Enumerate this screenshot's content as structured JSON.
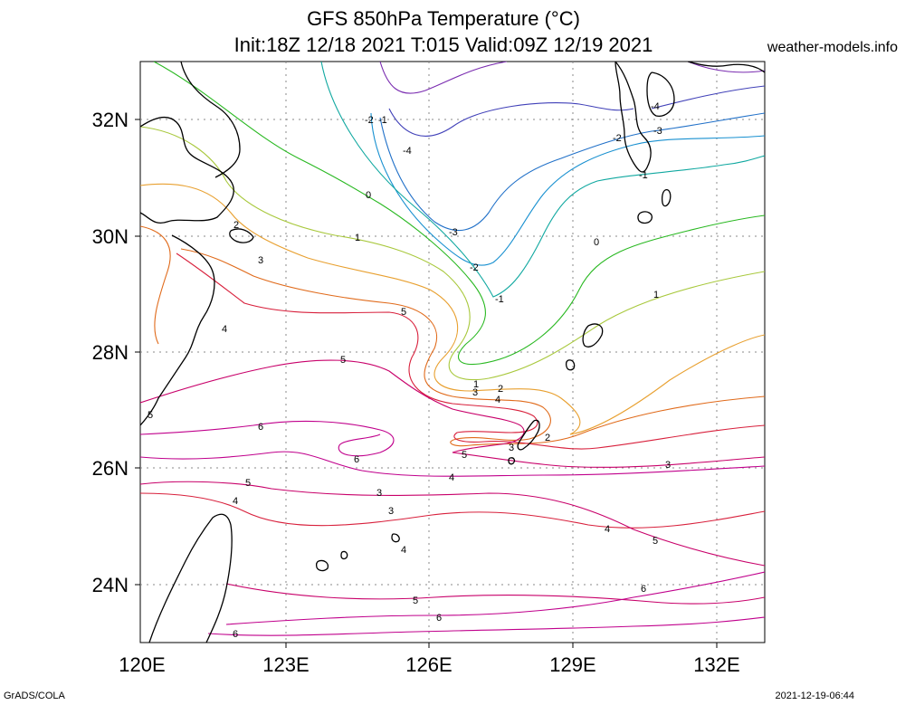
{
  "title": {
    "line1": "GFS 850hPa Temperature (°C)",
    "line2": "Init:18Z 12/18 2021 T:015 Valid:09Z 12/19 2021",
    "site": "weather-models.info"
  },
  "footer": {
    "left": "GrADS/COLA",
    "right": "2021-12-19-06:44"
  },
  "axes": {
    "lat_labels": [
      "32N",
      "30N",
      "28N",
      "26N",
      "24N"
    ],
    "lon_labels": [
      "120E",
      "123E",
      "126E",
      "129E",
      "132E"
    ]
  },
  "colors": {
    "c6": "#c0008c",
    "c5": "#c8006a",
    "c4": "#d8203c",
    "c3": "#e06a1a",
    "c2": "#e8a030",
    "c1": "#a8c83c",
    "c0": "#28b820",
    "cm1": "#10a8a0",
    "cm2": "#1890d0",
    "cm3": "#2070c8",
    "cm4": "#4040b8",
    "cm5": "#7a2cb0",
    "coast": "#000000"
  },
  "contour_labels": [
    {
      "id": "l_m2a",
      "text": "-2"
    },
    {
      "id": "l_m1a",
      "text": "-1"
    },
    {
      "id": "l_m4a",
      "text": "-4"
    },
    {
      "id": "l_0a",
      "text": "0"
    },
    {
      "id": "l_1a",
      "text": "1"
    },
    {
      "id": "l_2a",
      "text": "2"
    },
    {
      "id": "l_3a",
      "text": "3"
    },
    {
      "id": "l_4a",
      "text": "4"
    },
    {
      "id": "l_m3a",
      "text": "-3"
    },
    {
      "id": "l_m2b",
      "text": "-2"
    },
    {
      "id": "l_m1b",
      "text": "-1"
    },
    {
      "id": "l_0b",
      "text": "0"
    },
    {
      "id": "l_1b",
      "text": "1"
    },
    {
      "id": "l_5a",
      "text": "5"
    },
    {
      "id": "l_m4b",
      "text": "-4"
    },
    {
      "id": "l_m3b",
      "text": "-3"
    },
    {
      "id": "l_m2c",
      "text": "-2"
    },
    {
      "id": "l_m1c",
      "text": "-1"
    },
    {
      "id": "l_5b",
      "text": "5"
    },
    {
      "id": "l_1c",
      "text": "1"
    },
    {
      "id": "l_2b",
      "text": "2"
    },
    {
      "id": "l_3b",
      "text": "3"
    },
    {
      "id": "l_4b",
      "text": "4"
    },
    {
      "id": "l_6a",
      "text": "6"
    },
    {
      "id": "l_5c",
      "text": "5"
    },
    {
      "id": "l_3c",
      "text": "3"
    },
    {
      "id": "l_2c",
      "text": "2"
    },
    {
      "id": "l_6b",
      "text": "6"
    },
    {
      "id": "l_4c",
      "text": "4"
    },
    {
      "id": "l_5d",
      "text": "5"
    },
    {
      "id": "l_4d",
      "text": "4"
    },
    {
      "id": "l_3d",
      "text": "3"
    },
    {
      "id": "l_3e",
      "text": "3"
    },
    {
      "id": "l_4e",
      "text": "4"
    },
    {
      "id": "l_3f",
      "text": "3"
    },
    {
      "id": "l_4f",
      "text": "4"
    },
    {
      "id": "l_5e",
      "text": "5"
    },
    {
      "id": "l_6c",
      "text": "6"
    },
    {
      "id": "l_5f",
      "text": "5"
    },
    {
      "id": "l_6d",
      "text": "6"
    },
    {
      "id": "l_6e",
      "text": "6"
    }
  ]
}
